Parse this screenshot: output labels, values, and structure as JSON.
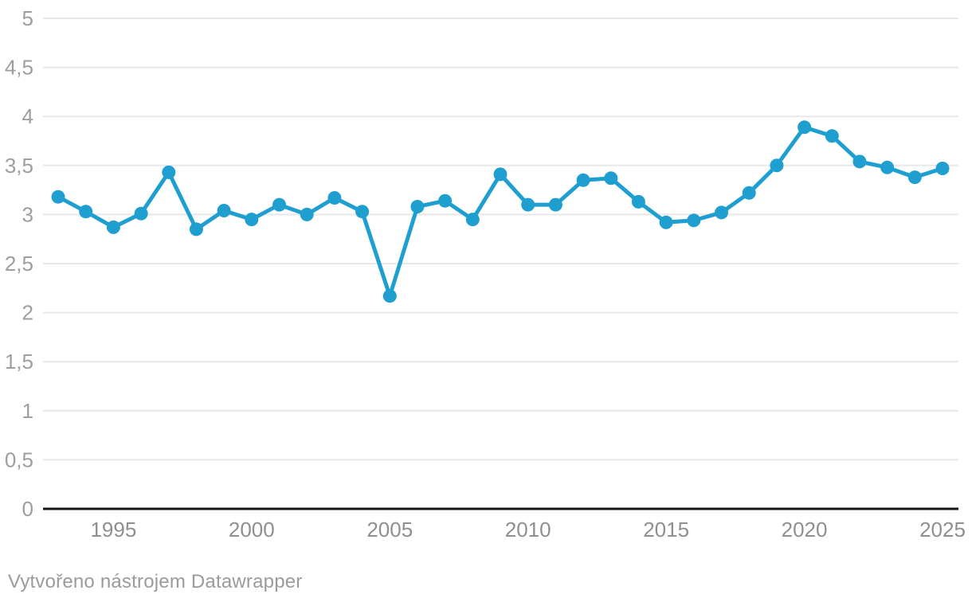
{
  "chart_data": {
    "type": "line",
    "title": "",
    "x": [
      1993,
      1994,
      1995,
      1996,
      1997,
      1998,
      1999,
      2000,
      2001,
      2002,
      2003,
      2004,
      2005,
      2006,
      2007,
      2008,
      2009,
      2010,
      2011,
      2012,
      2013,
      2014,
      2015,
      2016,
      2017,
      2018,
      2019,
      2020,
      2021,
      2022,
      2023,
      2024,
      2025
    ],
    "values": [
      3.18,
      3.03,
      2.87,
      3.01,
      3.43,
      2.85,
      3.04,
      2.95,
      3.1,
      3.0,
      3.17,
      3.03,
      2.17,
      3.08,
      3.14,
      2.95,
      3.41,
      3.1,
      3.1,
      3.35,
      3.37,
      3.13,
      2.92,
      2.94,
      3.02,
      3.22,
      3.5,
      3.89,
      3.8,
      3.54,
      3.48,
      3.38,
      3.47
    ],
    "xlabel": "",
    "ylabel": "",
    "xlim": [
      1993,
      2025
    ],
    "ylim": [
      0,
      5
    ],
    "y_ticks": [
      {
        "value": 0,
        "label": "0"
      },
      {
        "value": 0.5,
        "label": "0,5"
      },
      {
        "value": 1,
        "label": "1"
      },
      {
        "value": 1.5,
        "label": "1,5"
      },
      {
        "value": 2,
        "label": "2"
      },
      {
        "value": 2.5,
        "label": "2,5"
      },
      {
        "value": 3,
        "label": "3"
      },
      {
        "value": 3.5,
        "label": "3,5"
      },
      {
        "value": 4,
        "label": "4"
      },
      {
        "value": 4.5,
        "label": "4,5"
      },
      {
        "value": 5,
        "label": "5"
      }
    ],
    "x_ticks": [
      {
        "value": 1995,
        "label": "1995"
      },
      {
        "value": 2000,
        "label": "2000"
      },
      {
        "value": 2005,
        "label": "2005"
      },
      {
        "value": 2010,
        "label": "2010"
      },
      {
        "value": 2015,
        "label": "2015"
      },
      {
        "value": 2020,
        "label": "2020"
      },
      {
        "value": 2025,
        "label": "2025"
      }
    ],
    "grid": true,
    "legend": false,
    "colors": {
      "line": "#1f9fd0",
      "point": "#1f9fd0",
      "gridline": "#e8e8e8",
      "zero_axis": "#161616",
      "y_tick_label": "#9e9e9e",
      "x_tick_label": "#8f8f8f",
      "background": "#ffffff"
    }
  },
  "footer": {
    "text": "Vytvořeno nástrojem Datawrapper"
  }
}
